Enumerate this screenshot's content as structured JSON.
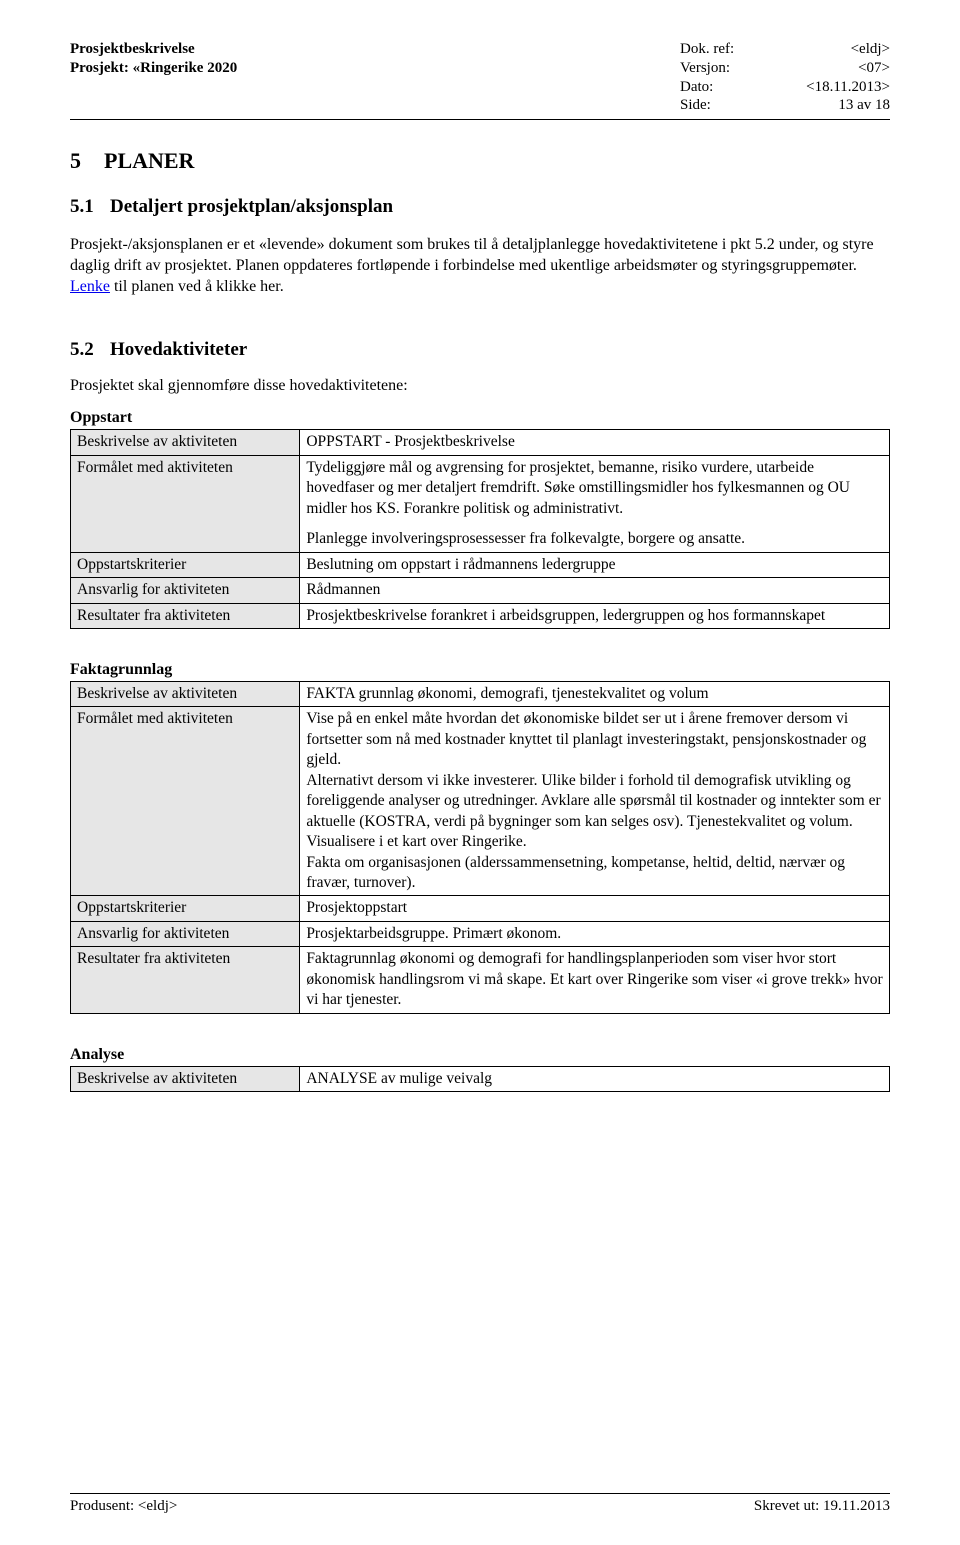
{
  "header": {
    "left_line1": "Prosjektbeskrivelse",
    "left_line2": "Prosjekt: «Ringerike 2020",
    "right": {
      "labels": [
        "Dok. ref:",
        "Versjon:",
        "Dato:",
        "Side:"
      ],
      "values": [
        "<eldj>",
        "<07>",
        "<18.11.2013>",
        "13 av 18"
      ]
    }
  },
  "h1": {
    "num": "5",
    "text": "PLANER"
  },
  "h2a": {
    "num": "5.1",
    "text": "Detaljert prosjektplan/aksjonsplan"
  },
  "para1a": "Prosjekt-/aksjonsplanen er et «levende» dokument som brukes til å detaljplanlegge hovedaktivitetene i pkt 5.2 under, og styre daglig drift av prosjektet. Planen oppdateres fortløpende i forbindelse med ukentlige arbeidsmøter og styringsgruppemøter.",
  "para1b_prefix": "",
  "link_text": "Lenke",
  "para1b_suffix": " til planen ved å klikke her.",
  "h2b": {
    "num": "5.2",
    "text": "Hovedaktiviteter"
  },
  "intro": "Prosjektet skal gjennomføre disse hovedaktivitetene:",
  "tables": {
    "oppstart": {
      "title": "Oppstart",
      "rows": [
        {
          "label": "Beskrivelse av aktiviteten",
          "value": "OPPSTART - Prosjektbeskrivelse"
        },
        {
          "label": "Formålet med aktiviteten",
          "value_multi": [
            "Tydeliggjøre mål og avgrensing for prosjektet, bemanne, risiko vurdere, utarbeide hovedfaser og mer detaljert fremdrift. Søke omstillingsmidler hos fylkesmannen og OU midler hos KS. Forankre politisk og administrativt.",
            "Planlegge involveringsprosessesser fra folkevalgte, borgere og ansatte."
          ]
        },
        {
          "label": "Oppstartskriterier",
          "value": "Beslutning om oppstart i rådmannens ledergruppe"
        },
        {
          "label": "Ansvarlig for aktiviteten",
          "value": "Rådmannen"
        },
        {
          "label": "Resultater fra aktiviteten",
          "value": "Prosjektbeskrivelse forankret i arbeidsgruppen, ledergruppen og hos formannskapet"
        }
      ]
    },
    "faktagrunnlag": {
      "title": "Faktagrunnlag",
      "rows": [
        {
          "label": "Beskrivelse av aktiviteten",
          "value": "FAKTA grunnlag økonomi, demografi, tjenestekvalitet og volum"
        },
        {
          "label": "Formålet med aktiviteten",
          "value_multi": [
            "Vise på en enkel måte hvordan det økonomiske bildet ser ut i årene fremover dersom vi fortsetter som nå med kostnader knyttet til planlagt investeringstakt, pensjonskostnader og gjeld.",
            "Alternativt dersom vi ikke investerer. Ulike bilder i forhold til demografisk utvikling og foreliggende analyser og utredninger. Avklare alle spørsmål til kostnader og inntekter som er aktuelle (KOSTRA, verdi på bygninger som kan selges osv). Tjenestekvalitet og volum. Visualisere i et kart over Ringerike.",
            "Fakta om organisasjonen (alderssammensetning, kompetanse, heltid, deltid, nærvær og fravær, turnover)."
          ]
        },
        {
          "label": "Oppstartskriterier",
          "value": "Prosjektoppstart"
        },
        {
          "label": "Ansvarlig for aktiviteten",
          "value": "Prosjektarbeidsgruppe. Primært økonom."
        },
        {
          "label": "Resultater fra aktiviteten",
          "value": "Faktagrunnlag økonomi og demografi for handlingsplanperioden som viser hvor stort økonomisk handlingsrom vi må skape. Et kart over Ringerike som viser «i grove trekk» hvor vi har tjenester."
        }
      ]
    },
    "analyse": {
      "title": "Analyse",
      "rows": [
        {
          "label": "Beskrivelse av aktiviteten",
          "value": "ANALYSE av mulige veivalg"
        }
      ]
    }
  },
  "footer": {
    "left": "Produsent: <eldj>",
    "right": "Skrevet ut: 19.11.2013"
  }
}
